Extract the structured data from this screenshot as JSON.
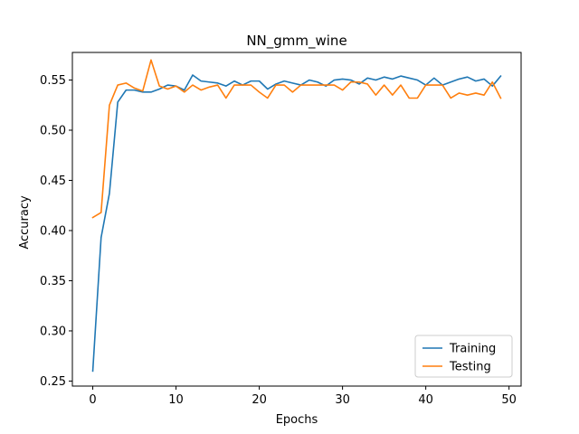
{
  "chart_data": {
    "type": "line",
    "title": "NN_gmm_wine",
    "xlabel": "Epochs",
    "ylabel": "Accuracy",
    "xlim": [
      -2.45,
      51.45
    ],
    "ylim": [
      0.245,
      0.5775
    ],
    "xticks": [
      0,
      10,
      20,
      30,
      40,
      50
    ],
    "yticks": [
      0.25,
      0.3,
      0.35,
      0.4,
      0.45,
      0.5,
      0.55
    ],
    "xtick_labels": [
      "0",
      "10",
      "20",
      "30",
      "40",
      "50"
    ],
    "ytick_labels": [
      "0.25",
      "0.30",
      "0.35",
      "0.40",
      "0.45",
      "0.50",
      "0.55"
    ],
    "grid": false,
    "legend_position": "bottom-right",
    "x": [
      0,
      1,
      2,
      3,
      4,
      5,
      6,
      7,
      8,
      9,
      10,
      11,
      12,
      13,
      14,
      15,
      16,
      17,
      18,
      19,
      20,
      21,
      22,
      23,
      24,
      25,
      26,
      27,
      28,
      29,
      30,
      31,
      32,
      33,
      34,
      35,
      36,
      37,
      38,
      39,
      40,
      41,
      42,
      43,
      44,
      45,
      46,
      47,
      48,
      49
    ],
    "series": [
      {
        "name": "Training",
        "color": "#1f77b4",
        "values": [
          0.26,
          0.393,
          0.437,
          0.528,
          0.54,
          0.54,
          0.538,
          0.538,
          0.541,
          0.545,
          0.544,
          0.54,
          0.555,
          0.549,
          0.548,
          0.547,
          0.544,
          0.549,
          0.545,
          0.549,
          0.549,
          0.541,
          0.546,
          0.549,
          0.547,
          0.545,
          0.55,
          0.548,
          0.544,
          0.55,
          0.551,
          0.55,
          0.546,
          0.552,
          0.55,
          0.553,
          0.551,
          0.554,
          0.552,
          0.55,
          0.545,
          0.552,
          0.545,
          0.548,
          0.551,
          0.553,
          0.549,
          0.551,
          0.544,
          0.554
        ]
      },
      {
        "name": "Testing",
        "color": "#ff7f0e",
        "values": [
          0.413,
          0.418,
          0.525,
          0.545,
          0.547,
          0.542,
          0.539,
          0.57,
          0.544,
          0.541,
          0.544,
          0.538,
          0.545,
          0.54,
          0.543,
          0.545,
          0.532,
          0.545,
          0.545,
          0.545,
          0.538,
          0.532,
          0.545,
          0.545,
          0.538,
          0.545,
          0.545,
          0.545,
          0.545,
          0.545,
          0.54,
          0.548,
          0.548,
          0.546,
          0.535,
          0.545,
          0.535,
          0.545,
          0.532,
          0.532,
          0.545,
          0.545,
          0.545,
          0.532,
          0.537,
          0.535,
          0.537,
          0.535,
          0.548,
          0.532
        ]
      }
    ]
  }
}
